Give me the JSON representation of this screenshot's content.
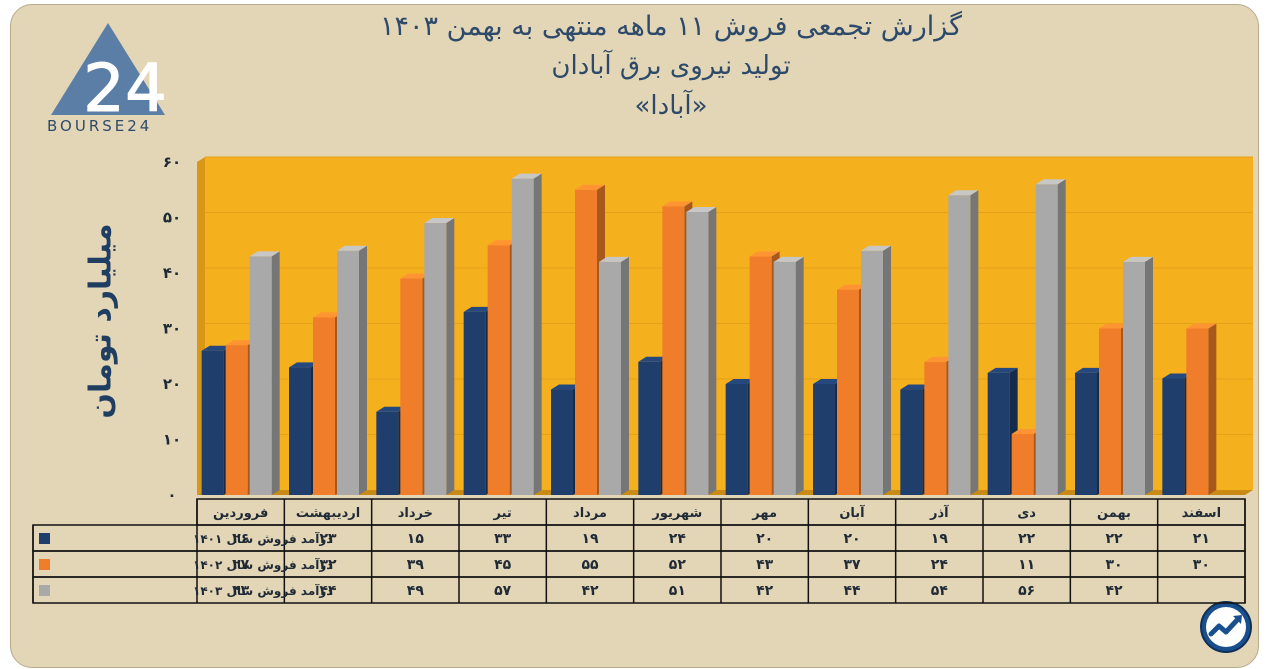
{
  "title": {
    "line1": "گزارش تجمعی فروش ۱۱ ماهه منتهی به بهمن ۱۴۰۳",
    "line2": "تولید نیروی برق آبادان",
    "line3": "«آبادا»"
  },
  "logo": {
    "text": "BOURSE24",
    "mark": "24",
    "icon": "triangle-logo-icon"
  },
  "badge_icon": "trend-up-icon",
  "chart_data": {
    "type": "bar",
    "ylabel": "میلیارد تومان",
    "ylim": [
      0,
      60
    ],
    "yticks": [
      {
        "value": 0,
        "label": "۰"
      },
      {
        "value": 10,
        "label": "۱۰"
      },
      {
        "value": 20,
        "label": "۲۰"
      },
      {
        "value": 30,
        "label": "۳۰"
      },
      {
        "value": 40,
        "label": "۴۰"
      },
      {
        "value": 50,
        "label": "۵۰"
      },
      {
        "value": 60,
        "label": "۶۰"
      }
    ],
    "categories": [
      "فروردین",
      "اردیبهشت",
      "خرداد",
      "تیر",
      "مرداد",
      "شهریور",
      "مهر",
      "آبان",
      "آذر",
      "دی",
      "بهمن",
      "اسفند"
    ],
    "series": [
      {
        "name": "درآمد فروش سال ۱۴۰۱",
        "color": "#1f3e6b",
        "values": [
          26,
          23,
          15,
          33,
          19,
          24,
          20,
          20,
          19,
          22,
          22,
          21
        ],
        "labels": [
          "۲۶",
          "۲۳",
          "۱۵",
          "۳۳",
          "۱۹",
          "۲۴",
          "۲۰",
          "۲۰",
          "۱۹",
          "۲۲",
          "۲۲",
          "۲۱"
        ]
      },
      {
        "name": "درآمد فروش سال ۱۴۰۲",
        "color": "#ef7d2a",
        "values": [
          27,
          32,
          39,
          45,
          55,
          52,
          43,
          37,
          24,
          11,
          30,
          30
        ],
        "labels": [
          "۲۷",
          "۳۲",
          "۳۹",
          "۴۵",
          "۵۵",
          "۵۲",
          "۴۳",
          "۳۷",
          "۲۴",
          "۱۱",
          "۳۰",
          "۳۰"
        ]
      },
      {
        "name": "درآمد فروش سال ۱۴۰۳",
        "color": "#a9a9a9",
        "values": [
          43,
          44,
          49,
          57,
          42,
          51,
          42,
          44,
          54,
          56,
          42,
          null
        ],
        "labels": [
          "۴۳",
          "۴۴",
          "۴۹",
          "۵۷",
          "۴۲",
          "۵۱",
          "۴۲",
          "۴۴",
          "۵۴",
          "۵۶",
          "۴۲",
          ""
        ]
      }
    ],
    "plot_background": "#f5b01d",
    "grid": true,
    "legend": "table-left"
  }
}
